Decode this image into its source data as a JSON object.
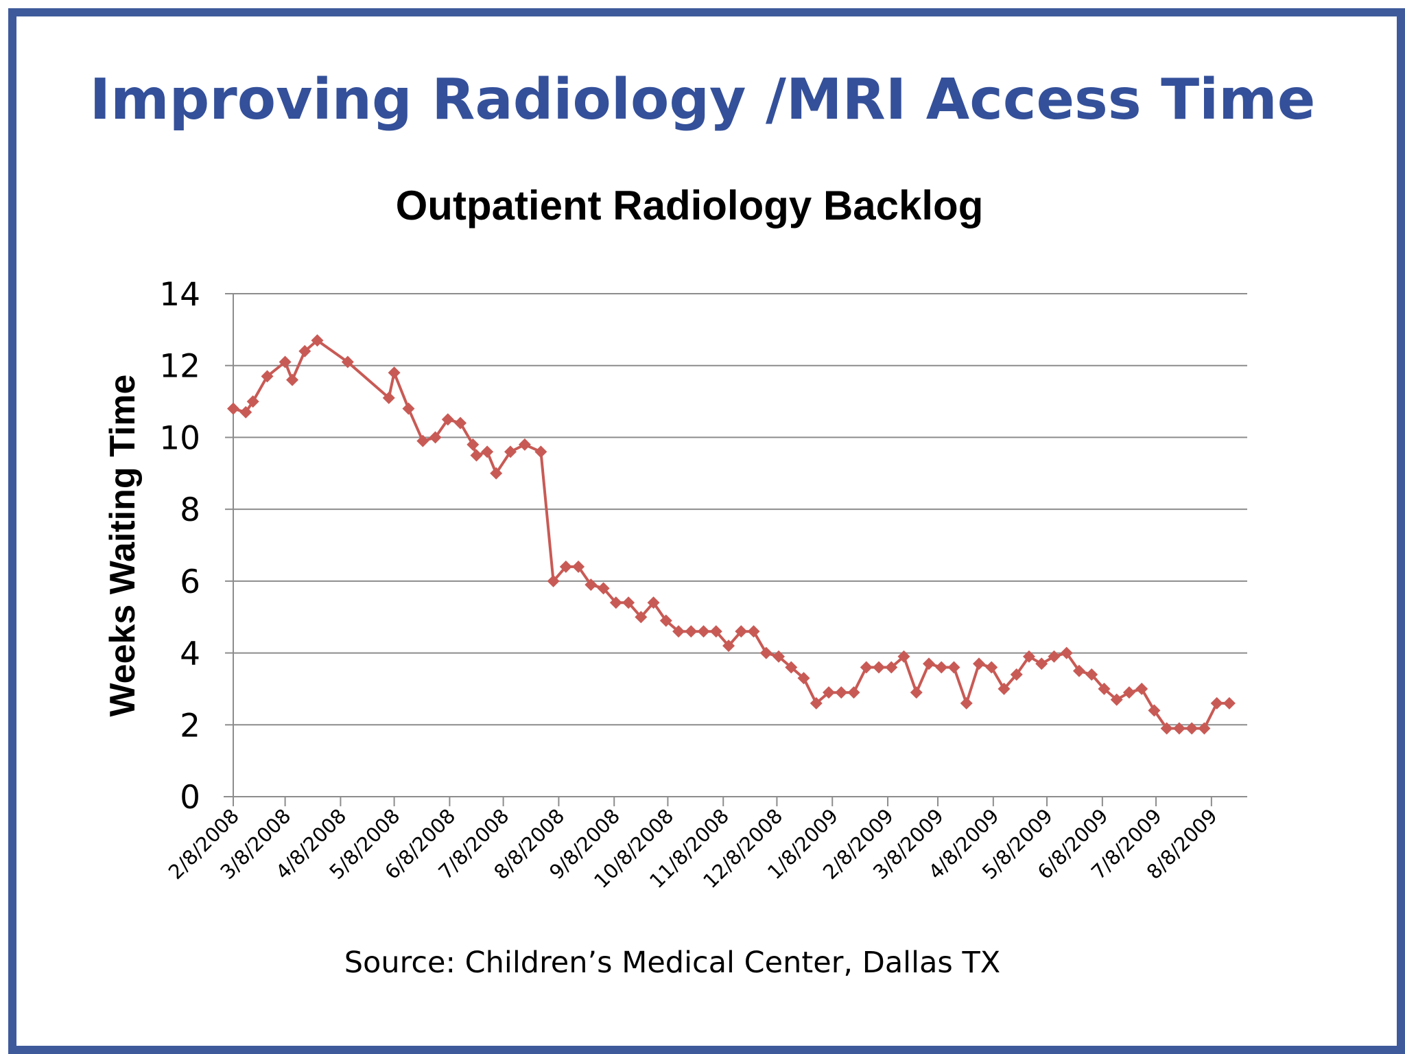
{
  "slide": {
    "title": "Improving Radiology /MRI Access Time",
    "source": "Source: Children’s Medical Center, Dallas TX",
    "frame_color": "#3e5a9b",
    "title_color": "#34509a"
  },
  "chart_data": {
    "type": "line",
    "title": "Outpatient Radiology Backlog",
    "xlabel": "",
    "ylabel": "Weeks Waiting Time",
    "ylim": [
      0,
      14
    ],
    "yticks": [
      0,
      2,
      4,
      6,
      8,
      10,
      12,
      14
    ],
    "xlim": [
      "2008-02-08",
      "2009-08-28"
    ],
    "xticks": [
      "2/8/2008",
      "3/8/2008",
      "4/8/2008",
      "5/8/2008",
      "6/8/2008",
      "7/8/2008",
      "8/8/2008",
      "9/8/2008",
      "10/8/2008",
      "11/8/2008",
      "12/8/2008",
      "1/8/2009",
      "2/8/2009",
      "3/8/2009",
      "4/8/2009",
      "5/8/2009",
      "6/8/2009",
      "7/8/2009",
      "8/8/2009"
    ],
    "grid": "horizontal",
    "series_color": "#c85a55",
    "marker": "diamond",
    "series": [
      {
        "x": [
          "2008-02-08",
          "2008-02-15",
          "2008-02-19",
          "2008-02-27",
          "2008-03-08",
          "2008-03-12",
          "2008-03-19",
          "2008-03-26",
          "2008-04-12",
          "2008-05-05",
          "2008-05-08",
          "2008-05-16",
          "2008-05-24",
          "2008-05-31",
          "2008-06-07",
          "2008-06-14",
          "2008-06-21",
          "2008-06-23",
          "2008-06-29",
          "2008-07-04",
          "2008-07-12",
          "2008-07-20",
          "2008-07-29",
          "2008-08-05",
          "2008-08-12",
          "2008-08-19",
          "2008-08-26",
          "2008-09-02",
          "2008-09-09",
          "2008-09-16",
          "2008-09-23",
          "2008-09-30",
          "2008-10-07",
          "2008-10-14",
          "2008-10-21",
          "2008-10-28",
          "2008-11-04",
          "2008-11-11",
          "2008-11-18",
          "2008-11-25",
          "2008-12-02",
          "2008-12-09",
          "2008-12-16",
          "2008-12-23",
          "2008-12-30",
          "2009-01-06",
          "2009-01-13",
          "2009-01-20",
          "2009-01-27",
          "2009-02-03",
          "2009-02-10",
          "2009-02-17",
          "2009-02-24",
          "2009-03-03",
          "2009-03-10",
          "2009-03-17",
          "2009-03-24",
          "2009-03-31",
          "2009-04-07",
          "2009-04-14",
          "2009-04-21",
          "2009-04-28",
          "2009-05-05",
          "2009-05-12",
          "2009-05-19",
          "2009-05-26",
          "2009-06-02",
          "2009-06-09",
          "2009-06-16",
          "2009-06-23",
          "2009-06-30",
          "2009-07-07",
          "2009-07-14",
          "2009-07-21",
          "2009-07-28",
          "2009-08-04",
          "2009-08-11",
          "2009-08-18"
        ],
        "values": [
          10.8,
          10.7,
          11.0,
          11.7,
          12.1,
          11.6,
          12.4,
          12.7,
          12.1,
          11.1,
          11.8,
          10.8,
          9.9,
          10.0,
          10.5,
          10.4,
          9.8,
          9.5,
          9.6,
          9.0,
          9.6,
          9.8,
          9.6,
          6.0,
          6.4,
          6.4,
          5.9,
          5.8,
          5.4,
          5.4,
          5.0,
          5.4,
          4.9,
          4.6,
          4.6,
          4.6,
          4.6,
          4.2,
          4.6,
          4.6,
          4.0,
          3.9,
          3.6,
          3.3,
          2.6,
          2.9,
          2.9,
          2.9,
          3.6,
          3.6,
          3.6,
          3.9,
          2.9,
          3.7,
          3.6,
          3.6,
          2.6,
          3.7,
          3.6,
          3.0,
          3.4,
          3.9,
          3.7,
          3.9,
          4.0,
          3.5,
          3.4,
          3.0,
          2.7,
          2.9,
          3.0,
          2.4,
          1.9,
          1.9,
          1.9,
          1.9,
          2.6,
          2.6
        ]
      }
    ]
  }
}
